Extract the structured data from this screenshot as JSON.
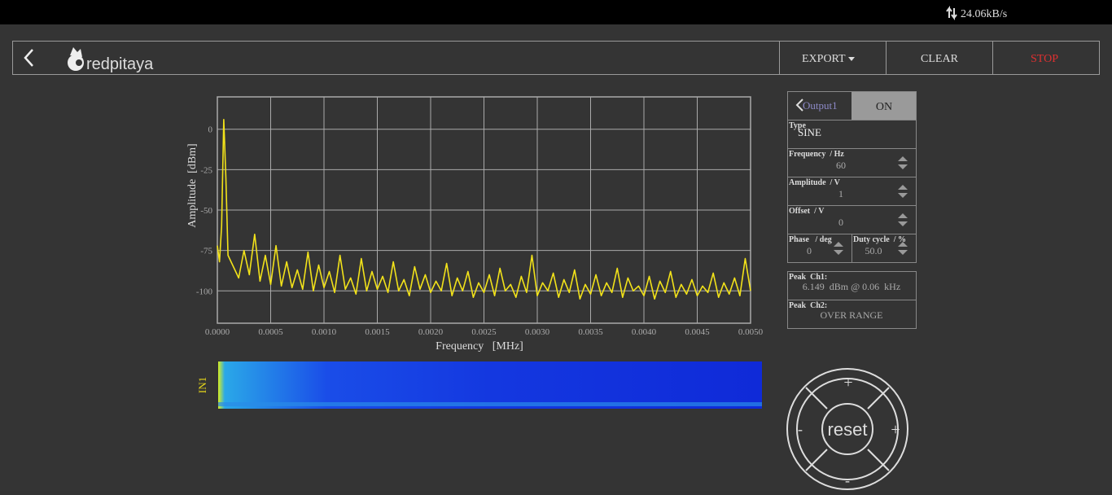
{
  "status_bar": {
    "rate": "24.06kB/s"
  },
  "header": {
    "logo": "redpitaya",
    "export": "EXPORT",
    "clear": "CLEAR",
    "stop": "STOP"
  },
  "chart_data": {
    "type": "line",
    "x_label": "Frequency   [MHz]",
    "y_label": "Amplitude  [dBm]",
    "xlim": [
      0,
      0.005
    ],
    "ylim": [
      -120,
      20
    ],
    "xticks": [
      {
        "value": 0,
        "label": "0.0000"
      },
      0.0005,
      {
        "value": 0.001,
        "label": "0.0010"
      },
      0.0015,
      {
        "value": 0.002,
        "label": "0.0020"
      },
      0.0025,
      {
        "value": 0.003,
        "label": "0.0030"
      },
      0.0035,
      {
        "value": 0.004,
        "label": "0.0040"
      },
      0.0045,
      {
        "value": 0.005,
        "label": "0.0050"
      }
    ],
    "yticks": [
      0,
      -25,
      -50,
      -75,
      -100
    ],
    "grid": true,
    "color": "#f2e21a",
    "x": [
      0,
      2e-05,
      4e-05,
      6e-05,
      8e-05,
      0.0001,
      0.00015,
      0.0002,
      0.00025,
      0.0003,
      0.00035,
      0.0004,
      0.00045,
      0.0005,
      0.00055,
      0.0006,
      0.00065,
      0.0007,
      0.00075,
      0.0008,
      0.00085,
      0.0009,
      0.00095,
      0.001,
      0.00105,
      0.0011,
      0.00115,
      0.0012,
      0.00125,
      0.0013,
      0.00135,
      0.0014,
      0.00145,
      0.0015,
      0.00155,
      0.0016,
      0.00165,
      0.0017,
      0.00175,
      0.0018,
      0.00185,
      0.0019,
      0.00195,
      0.002,
      0.00205,
      0.0021,
      0.00215,
      0.0022,
      0.00225,
      0.0023,
      0.00235,
      0.0024,
      0.00245,
      0.0025,
      0.00255,
      0.0026,
      0.00265,
      0.0027,
      0.00275,
      0.0028,
      0.00285,
      0.0029,
      0.00295,
      0.003,
      0.00305,
      0.0031,
      0.00315,
      0.0032,
      0.00325,
      0.0033,
      0.00335,
      0.0034,
      0.00345,
      0.0035,
      0.00355,
      0.0036,
      0.00365,
      0.0037,
      0.00375,
      0.0038,
      0.00385,
      0.0039,
      0.00395,
      0.004,
      0.00405,
      0.0041,
      0.00415,
      0.0042,
      0.00425,
      0.0043,
      0.00435,
      0.0044,
      0.00445,
      0.0045,
      0.00455,
      0.0046,
      0.00465,
      0.0047,
      0.00475,
      0.0048,
      0.00485,
      0.0049,
      0.00495,
      0.005
    ],
    "values": [
      -72,
      -82,
      -60,
      6,
      -30,
      -78,
      -85,
      -92,
      -75,
      -90,
      -65,
      -94,
      -78,
      -96,
      -72,
      -97,
      -82,
      -98,
      -87,
      -99,
      -76,
      -100,
      -84,
      -98,
      -88,
      -101,
      -78,
      -99,
      -92,
      -102,
      -80,
      -100,
      -88,
      -99,
      -91,
      -101,
      -82,
      -100,
      -93,
      -103,
      -85,
      -99,
      -90,
      -101,
      -94,
      -100,
      -83,
      -103,
      -92,
      -100,
      -88,
      -104,
      -95,
      -101,
      -90,
      -103,
      -86,
      -100,
      -96,
      -104,
      -91,
      -101,
      -78,
      -103,
      -95,
      -100,
      -89,
      -104,
      -93,
      -101,
      -87,
      -105,
      -96,
      -102,
      -90,
      -103,
      -95,
      -101,
      -86,
      -104,
      -92,
      -100,
      -97,
      -103,
      -91,
      -105,
      -94,
      -101,
      -88,
      -104,
      -96,
      -102,
      -93,
      -103,
      -97,
      -101,
      -89,
      -104,
      -95,
      -102,
      -92,
      -103,
      -80,
      -100
    ]
  },
  "waterfall": {
    "label": "IN1"
  },
  "output_panel": {
    "title": "Output1",
    "state": "ON",
    "type_label": "Type",
    "type_value": "SINE",
    "frequency_label": "Frequency  / Hz",
    "frequency_value": "60",
    "amplitude_label": "Amplitude  / V",
    "amplitude_value": "1",
    "offset_label": "Offset  / V",
    "offset_value": "0",
    "phase_label": "Phase   / deg",
    "phase_value": "0",
    "duty_label": "Duty cycle  / %",
    "duty_value": "50.0"
  },
  "peaks": {
    "ch1_label": "Peak  Ch1:",
    "ch1_value": "6.149  dBm @ 0.06  kHz",
    "ch2_label": "Peak  Ch2:",
    "ch2_value": "OVER RANGE"
  },
  "joystick": {
    "up": "+",
    "left": "-",
    "center": "reset",
    "right": "+",
    "down": "-"
  }
}
